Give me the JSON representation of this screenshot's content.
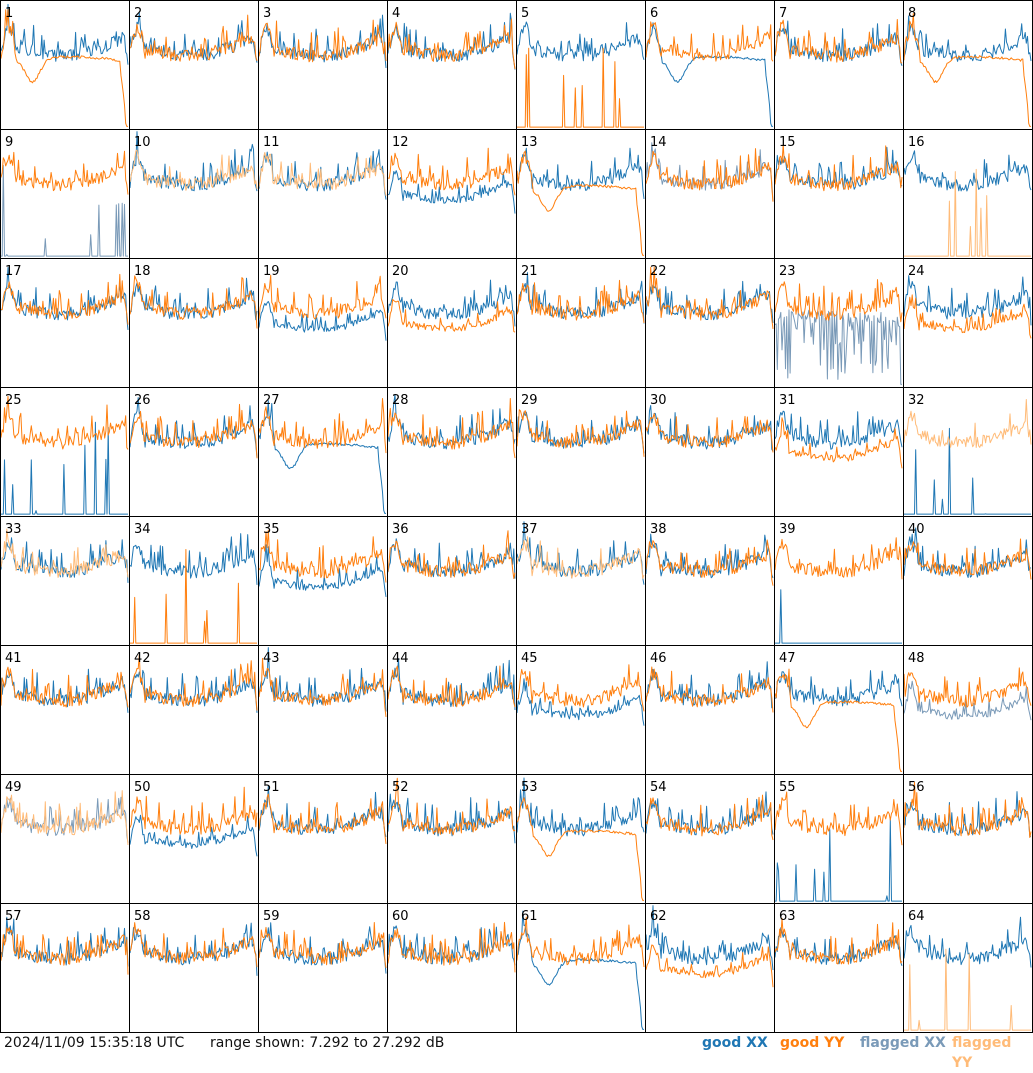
{
  "footer": {
    "timestamp": "2024/11/09 15:35:18 UTC",
    "range_text": "range shown: 7.292 to 27.292 dB"
  },
  "legend": {
    "good_xx": "good XX",
    "good_yy": "good YY",
    "flagged_xx": "flagged XX",
    "flagged_yy": "flagged YY"
  },
  "colors": {
    "good_xx": "#1f77b4",
    "good_yy": "#ff7f0e",
    "flagged_xx": "#7a9ab8",
    "flagged_yy": "#ffbb78"
  },
  "chart_data": {
    "type": "line",
    "grid": "8x8 small multiples",
    "ylim_db": [
      7.292,
      27.292
    ],
    "panels": [
      {
        "label": "1",
        "xx": "good",
        "yy": "good",
        "xx_shape": "normal",
        "yy_shape": "bowl_dip"
      },
      {
        "label": "2",
        "xx": "good",
        "yy": "good",
        "xx_shape": "normal",
        "yy_shape": "normal"
      },
      {
        "label": "3",
        "xx": "good",
        "yy": "good",
        "xx_shape": "normal",
        "yy_shape": "normal"
      },
      {
        "label": "4",
        "xx": "good",
        "yy": "good",
        "xx_shape": "normal",
        "yy_shape": "normal"
      },
      {
        "label": "5",
        "xx": "good",
        "yy": "good",
        "xx_shape": "normal",
        "yy_shape": "spikes"
      },
      {
        "label": "6",
        "xx": "good",
        "yy": "good",
        "xx_shape": "bowl_dip",
        "yy_shape": "normal"
      },
      {
        "label": "7",
        "xx": "good",
        "yy": "good",
        "xx_shape": "normal",
        "yy_shape": "normal"
      },
      {
        "label": "8",
        "xx": "good",
        "yy": "good",
        "xx_shape": "normal",
        "yy_shape": "bowl_dip"
      },
      {
        "label": "9",
        "xx": "flagged",
        "yy": "good",
        "xx_shape": "spikes",
        "yy_shape": "normal"
      },
      {
        "label": "10",
        "xx": "good",
        "yy": "flagged",
        "xx_shape": "normal",
        "yy_shape": "normal"
      },
      {
        "label": "11",
        "xx": "good",
        "yy": "flagged",
        "xx_shape": "normal",
        "yy_shape": "normal"
      },
      {
        "label": "12",
        "xx": "good",
        "yy": "good",
        "xx_shape": "low",
        "yy_shape": "normal"
      },
      {
        "label": "13",
        "xx": "good",
        "yy": "good",
        "xx_shape": "normal",
        "yy_shape": "bowl_dip"
      },
      {
        "label": "14",
        "xx": "flagged",
        "yy": "good",
        "xx_shape": "normal",
        "yy_shape": "normal"
      },
      {
        "label": "15",
        "xx": "good",
        "yy": "good",
        "xx_shape": "normal",
        "yy_shape": "normal"
      },
      {
        "label": "16",
        "xx": "good",
        "yy": "flagged",
        "xx_shape": "normal",
        "yy_shape": "spikes"
      },
      {
        "label": "17",
        "xx": "good",
        "yy": "good",
        "xx_shape": "normal",
        "yy_shape": "normal"
      },
      {
        "label": "18",
        "xx": "good",
        "yy": "good",
        "xx_shape": "normal",
        "yy_shape": "normal"
      },
      {
        "label": "19",
        "xx": "good",
        "yy": "good",
        "xx_shape": "low",
        "yy_shape": "normal"
      },
      {
        "label": "20",
        "xx": "good",
        "yy": "good",
        "xx_shape": "normal",
        "yy_shape": "low"
      },
      {
        "label": "21",
        "xx": "good",
        "yy": "good",
        "xx_shape": "normal",
        "yy_shape": "normal"
      },
      {
        "label": "22",
        "xx": "good",
        "yy": "good",
        "xx_shape": "normal",
        "yy_shape": "normal"
      },
      {
        "label": "23",
        "xx": "flagged",
        "yy": "good",
        "xx_shape": "noisy_low",
        "yy_shape": "normal"
      },
      {
        "label": "24",
        "xx": "good",
        "yy": "good",
        "xx_shape": "normal",
        "yy_shape": "low"
      },
      {
        "label": "25",
        "xx": "good",
        "yy": "good",
        "xx_shape": "spikes",
        "yy_shape": "normal"
      },
      {
        "label": "26",
        "xx": "good",
        "yy": "good",
        "xx_shape": "normal",
        "yy_shape": "normal"
      },
      {
        "label": "27",
        "xx": "good",
        "yy": "good",
        "xx_shape": "bowl_dip",
        "yy_shape": "normal"
      },
      {
        "label": "28",
        "xx": "good",
        "yy": "good",
        "xx_shape": "normal",
        "yy_shape": "normal"
      },
      {
        "label": "29",
        "xx": "good",
        "yy": "good",
        "xx_shape": "normal",
        "yy_shape": "normal"
      },
      {
        "label": "30",
        "xx": "good",
        "yy": "good",
        "xx_shape": "normal",
        "yy_shape": "normal"
      },
      {
        "label": "31",
        "xx": "good",
        "yy": "good",
        "xx_shape": "normal",
        "yy_shape": "low"
      },
      {
        "label": "32",
        "xx": "good",
        "yy": "flagged",
        "xx_shape": "spikes",
        "yy_shape": "normal"
      },
      {
        "label": "33",
        "xx": "good",
        "yy": "flagged",
        "xx_shape": "normal",
        "yy_shape": "normal"
      },
      {
        "label": "34",
        "xx": "good",
        "yy": "good",
        "xx_shape": "normal",
        "yy_shape": "spikes"
      },
      {
        "label": "35",
        "xx": "good",
        "yy": "good",
        "xx_shape": "low",
        "yy_shape": "normal"
      },
      {
        "label": "36",
        "xx": "good",
        "yy": "good",
        "xx_shape": "normal",
        "yy_shape": "normal"
      },
      {
        "label": "37",
        "xx": "good",
        "yy": "flagged",
        "xx_shape": "normal",
        "yy_shape": "normal"
      },
      {
        "label": "38",
        "xx": "good",
        "yy": "good",
        "xx_shape": "normal",
        "yy_shape": "normal"
      },
      {
        "label": "39",
        "xx": "good",
        "yy": "good",
        "xx_shape": "spikes",
        "yy_shape": "normal"
      },
      {
        "label": "40",
        "xx": "good",
        "yy": "good",
        "xx_shape": "normal",
        "yy_shape": "normal"
      },
      {
        "label": "41",
        "xx": "good",
        "yy": "good",
        "xx_shape": "normal",
        "yy_shape": "normal"
      },
      {
        "label": "42",
        "xx": "good",
        "yy": "good",
        "xx_shape": "normal",
        "yy_shape": "normal"
      },
      {
        "label": "43",
        "xx": "good",
        "yy": "good",
        "xx_shape": "normal",
        "yy_shape": "normal"
      },
      {
        "label": "44",
        "xx": "good",
        "yy": "good",
        "xx_shape": "normal",
        "yy_shape": "normal"
      },
      {
        "label": "45",
        "xx": "good",
        "yy": "good",
        "xx_shape": "low",
        "yy_shape": "normal"
      },
      {
        "label": "46",
        "xx": "good",
        "yy": "good",
        "xx_shape": "normal",
        "yy_shape": "normal"
      },
      {
        "label": "47",
        "xx": "good",
        "yy": "good",
        "xx_shape": "normal",
        "yy_shape": "bowl_dip"
      },
      {
        "label": "48",
        "xx": "flagged",
        "yy": "good",
        "xx_shape": "low",
        "yy_shape": "normal"
      },
      {
        "label": "49",
        "xx": "flagged",
        "yy": "flagged",
        "xx_shape": "normal",
        "yy_shape": "normal"
      },
      {
        "label": "50",
        "xx": "good",
        "yy": "good",
        "xx_shape": "low",
        "yy_shape": "normal"
      },
      {
        "label": "51",
        "xx": "good",
        "yy": "good",
        "xx_shape": "normal",
        "yy_shape": "normal"
      },
      {
        "label": "52",
        "xx": "good",
        "yy": "good",
        "xx_shape": "normal",
        "yy_shape": "normal"
      },
      {
        "label": "53",
        "xx": "good",
        "yy": "good",
        "xx_shape": "normal",
        "yy_shape": "bowl_dip"
      },
      {
        "label": "54",
        "xx": "good",
        "yy": "good",
        "xx_shape": "normal",
        "yy_shape": "normal"
      },
      {
        "label": "55",
        "xx": "good",
        "yy": "good",
        "xx_shape": "spikes",
        "yy_shape": "normal"
      },
      {
        "label": "56",
        "xx": "good",
        "yy": "good",
        "xx_shape": "normal",
        "yy_shape": "normal"
      },
      {
        "label": "57",
        "xx": "good",
        "yy": "good",
        "xx_shape": "normal",
        "yy_shape": "normal"
      },
      {
        "label": "58",
        "xx": "good",
        "yy": "good",
        "xx_shape": "normal",
        "yy_shape": "normal"
      },
      {
        "label": "59",
        "xx": "good",
        "yy": "good",
        "xx_shape": "normal",
        "yy_shape": "normal"
      },
      {
        "label": "60",
        "xx": "good",
        "yy": "good",
        "xx_shape": "normal",
        "yy_shape": "normal"
      },
      {
        "label": "61",
        "xx": "good",
        "yy": "good",
        "xx_shape": "bowl_dip",
        "yy_shape": "normal"
      },
      {
        "label": "62",
        "xx": "good",
        "yy": "good",
        "xx_shape": "normal",
        "yy_shape": "low"
      },
      {
        "label": "63",
        "xx": "good",
        "yy": "good",
        "xx_shape": "normal",
        "yy_shape": "normal"
      },
      {
        "label": "64",
        "xx": "good",
        "yy": "flagged",
        "xx_shape": "normal",
        "yy_shape": "spikes"
      }
    ]
  }
}
